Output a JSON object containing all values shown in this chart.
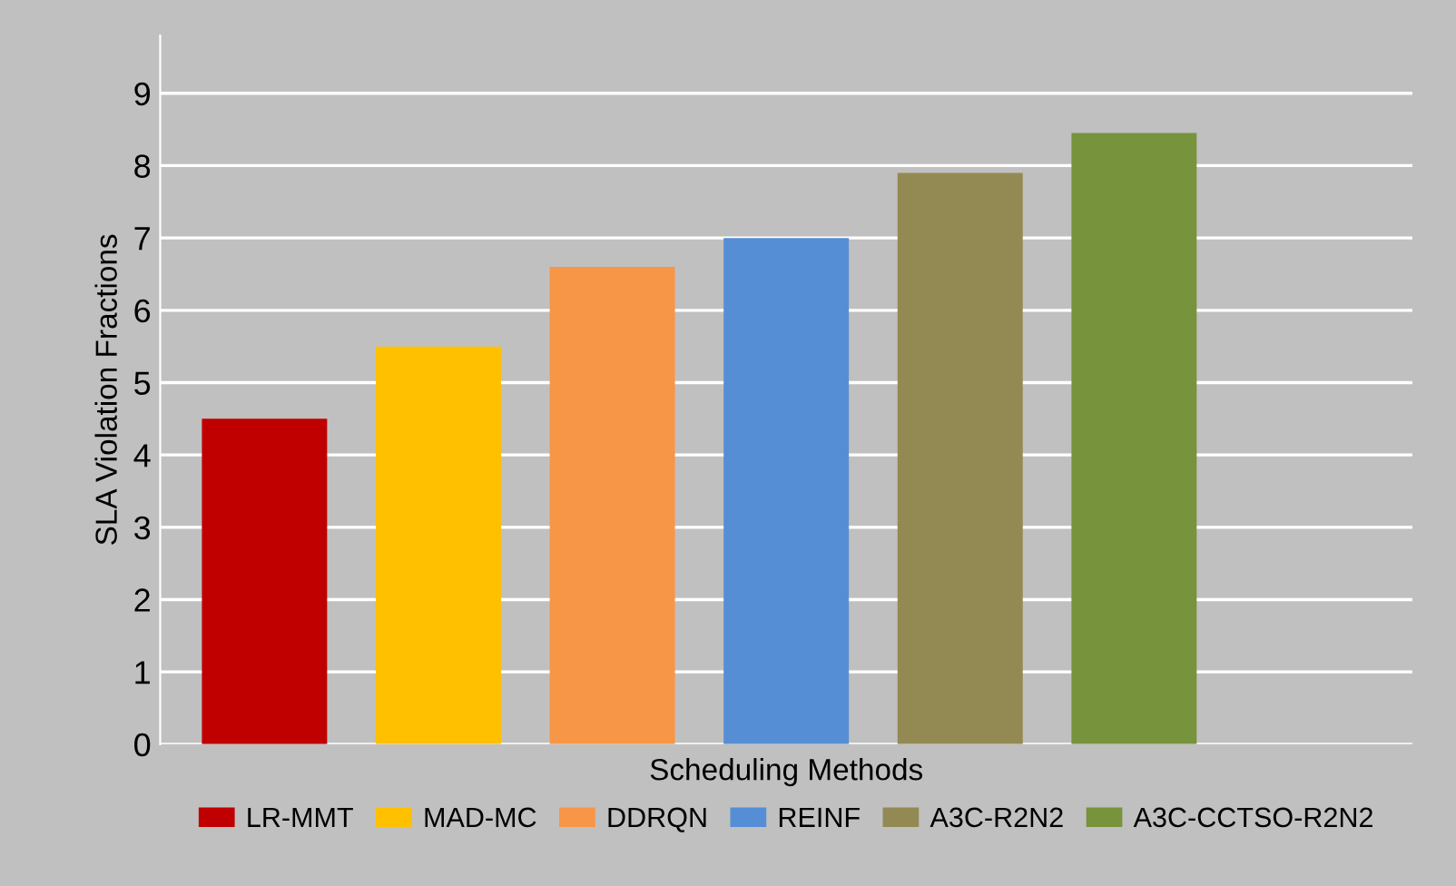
{
  "chart_data": {
    "type": "bar",
    "xlabel": "Scheduling Methods",
    "ylabel": "SLA Violation Fractions",
    "categories": [
      null,
      null,
      null,
      null,
      null,
      null,
      null
    ],
    "series": [
      {
        "name": "LR-MMT",
        "color": "#c00000",
        "values": [
          4.5,
          null,
          null,
          null,
          null,
          null,
          null
        ]
      },
      {
        "name": "MAD-MC",
        "color": "#ffc000",
        "values": [
          null,
          5.5,
          null,
          null,
          null,
          null,
          null
        ]
      },
      {
        "name": "DDRQN",
        "color": "#f79646",
        "values": [
          null,
          null,
          6.6,
          null,
          null,
          null,
          null
        ]
      },
      {
        "name": "REINF",
        "color": "#558ed5",
        "values": [
          null,
          null,
          null,
          7.0,
          null,
          null,
          null
        ]
      },
      {
        "name": "A3C-R2N2",
        "color": "#938953",
        "values": [
          null,
          null,
          null,
          null,
          7.9,
          null,
          null
        ]
      },
      {
        "name": "A3C-CCTSO-R2N2",
        "color": "#77933c",
        "values": [
          null,
          null,
          null,
          null,
          null,
          8.45,
          null
        ]
      }
    ],
    "ylim": [
      0,
      9.8
    ],
    "yticks": [
      0,
      1,
      2,
      3,
      4,
      5,
      6,
      7,
      8,
      9
    ],
    "grid": "y",
    "legend": "bottom"
  }
}
